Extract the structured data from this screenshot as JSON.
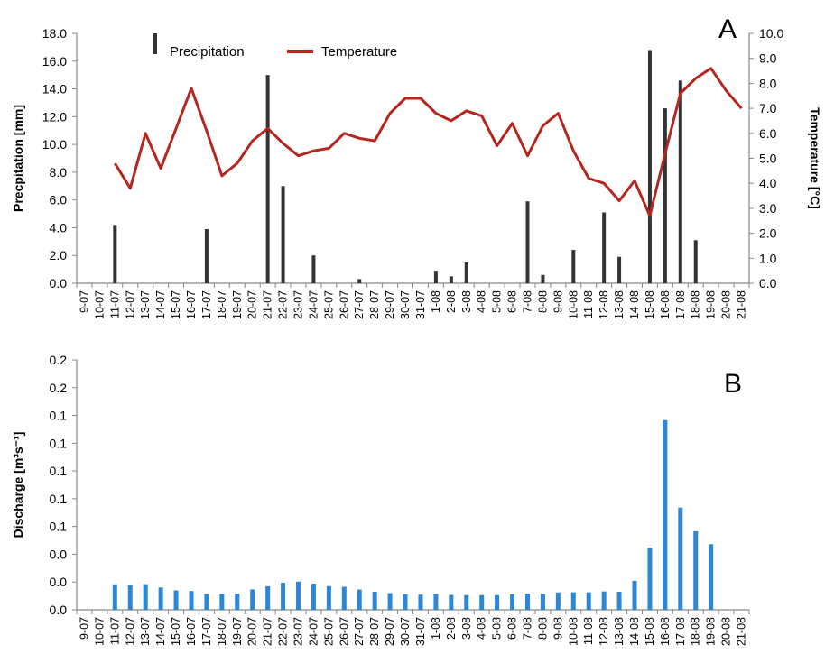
{
  "dates": [
    "9-07",
    "10-07",
    "11-07",
    "12-07",
    "13-07",
    "14-07",
    "15-07",
    "16-07",
    "17-07",
    "18-07",
    "19-07",
    "20-07",
    "21-07",
    "22-07",
    "23-07",
    "24-07",
    "25-07",
    "26-07",
    "27-07",
    "28-07",
    "29-07",
    "30-07",
    "31-07",
    "1-08",
    "2-08",
    "3-08",
    "4-08",
    "5-08",
    "6-08",
    "7-08",
    "8-08",
    "9-08",
    "10-08",
    "11-08",
    "12-08",
    "13-08",
    "14-08",
    "15-08",
    "16-08",
    "17-08",
    "18-08",
    "19-08",
    "20-08",
    "21-08"
  ],
  "chart_data": [
    {
      "panel": "A",
      "type": "bar+line",
      "title": "",
      "xlabel": "",
      "ylabel": "Precpitation [mm]",
      "ylabel_right": "Temperature [°C]",
      "ylim": [
        0,
        18
      ],
      "ylim_right": [
        0,
        10
      ],
      "yticks": [
        "0.0",
        "2.0",
        "4.0",
        "6.0",
        "8.0",
        "10.0",
        "12.0",
        "14.0",
        "16.0",
        "18.0"
      ],
      "yticks_right": [
        "0.0",
        "1.0",
        "2.0",
        "3.0",
        "4.0",
        "5.0",
        "6.0",
        "7.0",
        "8.0",
        "9.0",
        "10.0"
      ],
      "legend": "top-center",
      "series": [
        {
          "name": "Precipitation",
          "kind": "bar",
          "color": "#333333",
          "values": [
            0,
            0,
            4.2,
            0,
            0,
            0,
            0,
            0,
            3.9,
            0,
            0,
            0,
            15.0,
            7.0,
            0,
            2.0,
            0,
            0,
            0.3,
            0,
            0,
            0,
            0,
            0.9,
            0.5,
            1.5,
            0,
            0,
            0,
            5.9,
            0.6,
            0,
            2.4,
            0,
            5.1,
            1.9,
            0,
            16.8,
            12.6,
            14.6,
            3.1,
            0,
            0,
            0
          ]
        },
        {
          "name": "Temperature",
          "kind": "line",
          "color": "#B5261E",
          "values": [
            null,
            null,
            4.8,
            3.8,
            6.0,
            4.6,
            6.2,
            7.8,
            6.1,
            4.3,
            4.8,
            5.7,
            6.2,
            5.6,
            5.1,
            5.3,
            5.4,
            6.0,
            5.8,
            5.7,
            6.8,
            7.4,
            7.4,
            6.8,
            6.5,
            6.9,
            6.7,
            5.5,
            6.4,
            5.1,
            6.3,
            6.8,
            5.3,
            4.2,
            4.0,
            3.3,
            4.1,
            2.7,
            5.2,
            7.6,
            8.2,
            8.6,
            7.7,
            7.0
          ]
        }
      ]
    },
    {
      "panel": "B",
      "type": "bar",
      "title": "",
      "xlabel": "",
      "ylabel": "Discharge [m³s⁻¹]",
      "ylim": [
        0,
        0.2
      ],
      "yticks": [
        "0.0",
        "0.0",
        "0.0",
        "0.1",
        "0.1",
        "0.1",
        "0.1",
        "0.1",
        "0.2",
        "0.2"
      ],
      "series": [
        {
          "name": "",
          "color": "#2E86D6",
          "values": [
            0,
            0,
            0.0204,
            0.0198,
            0.0205,
            0.0178,
            0.0155,
            0.015,
            0.0127,
            0.013,
            0.0128,
            0.0163,
            0.0188,
            0.0216,
            0.0225,
            0.0209,
            0.019,
            0.0184,
            0.0162,
            0.0145,
            0.0133,
            0.0125,
            0.0121,
            0.0127,
            0.0119,
            0.0117,
            0.0117,
            0.0117,
            0.0125,
            0.013,
            0.0128,
            0.0139,
            0.014,
            0.014,
            0.0147,
            0.0144,
            0.0232,
            0.0496,
            0.1518,
            0.0818,
            0.0629,
            0.0525,
            0,
            0
          ]
        }
      ]
    }
  ]
}
